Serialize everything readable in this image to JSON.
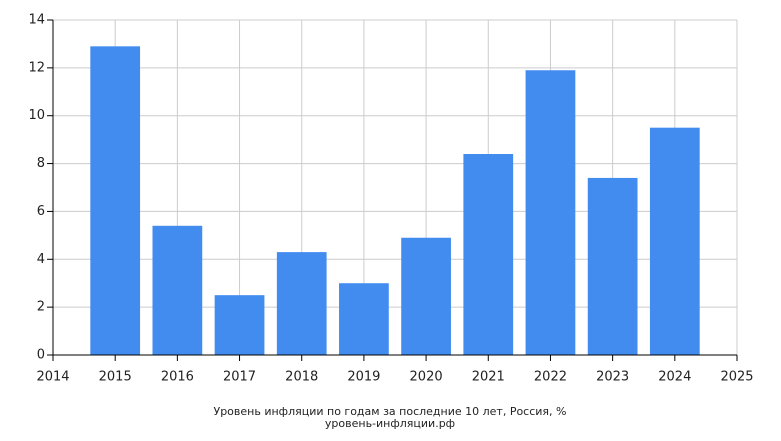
{
  "chart_data": {
    "type": "bar",
    "title": "Уровень инфляции по годам за последние 10 лет, Россия, %",
    "subtitle": "уровень-инфляции.рф",
    "x": [
      2015,
      2016,
      2017,
      2018,
      2019,
      2020,
      2021,
      2022,
      2023,
      2024
    ],
    "values": [
      12.9,
      5.4,
      2.5,
      4.3,
      3.0,
      4.9,
      8.4,
      11.9,
      7.4,
      9.5
    ],
    "color": "#428cf0",
    "xlim": [
      2014,
      2025
    ],
    "xticks": [
      2014,
      2015,
      2016,
      2017,
      2018,
      2019,
      2020,
      2021,
      2022,
      2023,
      2024,
      2025
    ],
    "ylim": [
      0,
      14
    ],
    "yticks": [
      0,
      2,
      4,
      6,
      8,
      10,
      12,
      14
    ],
    "grid": true
  }
}
